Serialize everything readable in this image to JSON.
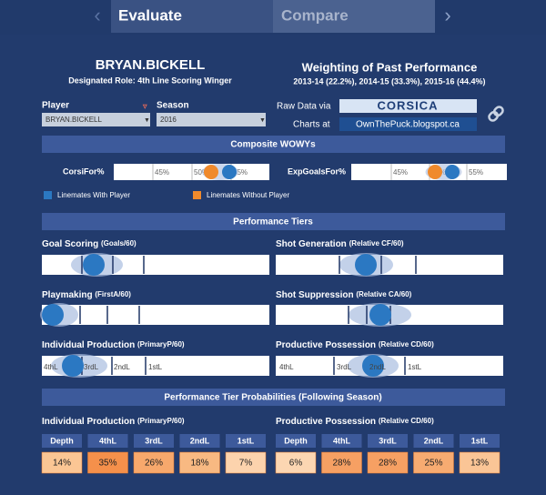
{
  "nav": {
    "tabs": [
      "Evaluate",
      "Compare"
    ]
  },
  "player": {
    "name": "BRYAN.BICKELL",
    "role": "Designated Role: 4th Line Scoring Winger"
  },
  "weighting": {
    "title": "Weighting of Past Performance",
    "detail": "2013-14 (22.2%), 2014-15 (33.3%), 2015-16 (44.4%)"
  },
  "filters": [
    {
      "label": "Player",
      "value": "BRYAN.BICKELL"
    },
    {
      "label": "Season",
      "value": "2016"
    }
  ],
  "sources": [
    {
      "label": "Raw Data via",
      "value": "CORSICA"
    },
    {
      "label": "Charts at",
      "value": "OwnThePuck.blogspot.ca"
    }
  ],
  "sections": [
    "Composite WOWYs",
    "Performance Tiers",
    "Performance Tier Probabilities (Following Season)"
  ],
  "wowy": [
    {
      "label": "CorsiFor%",
      "ticks": [
        "45%",
        "50%",
        "55%"
      ]
    },
    {
      "label": "ExpGoalsFor%",
      "ticks": [
        "45%",
        "50%",
        "55%"
      ]
    }
  ],
  "legend": [
    "Linemates With Player",
    "Linemates Without Player"
  ],
  "tiers": [
    {
      "title": "Goal Scoring",
      "unit": "(Goals/60)"
    },
    {
      "title": "Shot Generation",
      "unit": "(Relative CF/60)"
    },
    {
      "title": "Playmaking",
      "unit": "(FirstA/60)"
    },
    {
      "title": "Shot Suppression",
      "unit": "(Relative CA/60)"
    },
    {
      "title": "Individual Production",
      "unit": "(PrimaryP/60)"
    },
    {
      "title": "Productive Possession",
      "unit": "(Relative CD/60)"
    }
  ],
  "tier_labels": [
    "4thL",
    "3rdL",
    "2ndL",
    "1stL"
  ],
  "probabilities": [
    {
      "title": "Individual Production",
      "unit": "(PrimaryP/60)",
      "headers": [
        "Depth",
        "4thL",
        "3rdL",
        "2ndL",
        "1stL"
      ],
      "values": [
        "14%",
        "35%",
        "26%",
        "18%",
        "7%"
      ]
    },
    {
      "title": "Productive Possession",
      "unit": "(Relative CD/60)",
      "headers": [
        "Depth",
        "4thL",
        "3rdL",
        "2ndL",
        "1stL"
      ],
      "values": [
        "6%",
        "28%",
        "28%",
        "25%",
        "13%"
      ]
    }
  ]
}
